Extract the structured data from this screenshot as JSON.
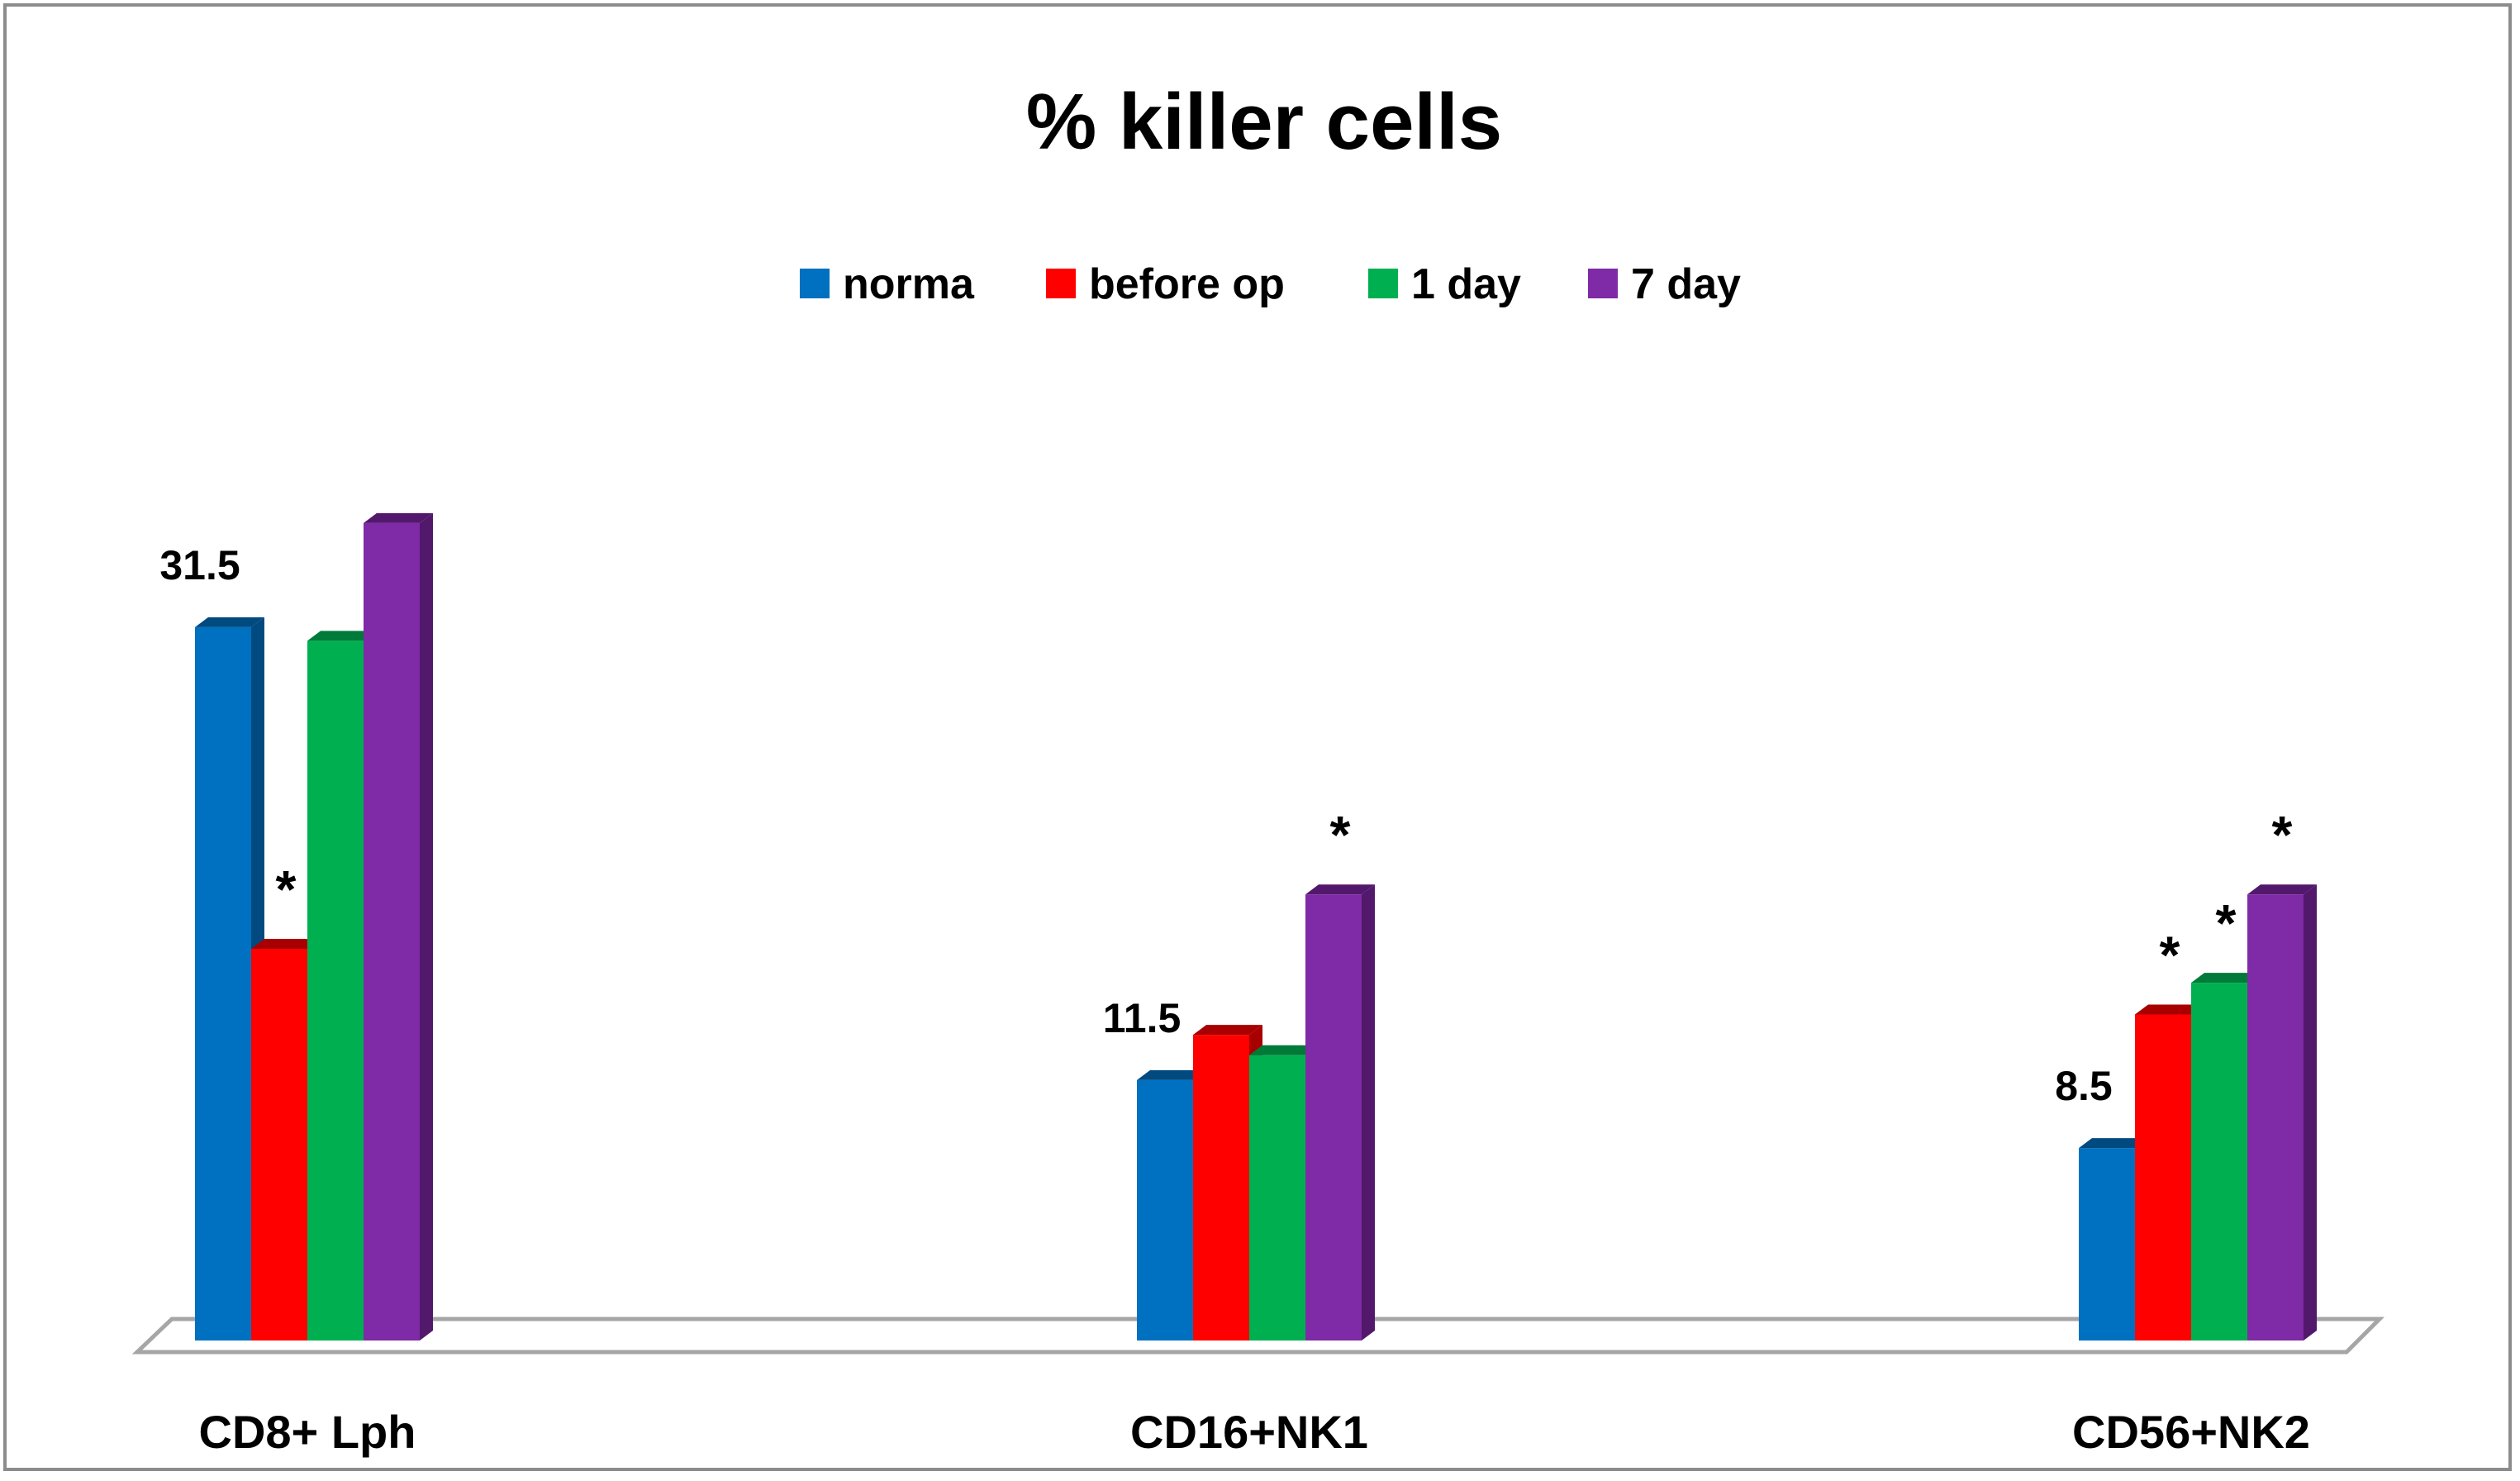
{
  "chart_data": {
    "type": "bar",
    "title": "% killer cells",
    "categories": [
      "CD8+ Lph",
      "CD16+NK1",
      "CD56+NK2"
    ],
    "series": [
      {
        "name": "norma",
        "color": "#0070c0",
        "side_color": "#004a80",
        "values": [
          31.5,
          11.5,
          8.5
        ]
      },
      {
        "name": "before op",
        "color": "#ff0000",
        "side_color": "#a80000",
        "values": [
          17.3,
          13.5,
          14.4
        ]
      },
      {
        "name": "1 day",
        "color": "#00b050",
        "side_color": "#007a38",
        "values": [
          30.9,
          12.6,
          15.8
        ]
      },
      {
        "name": "7 day",
        "color": "#7f2aa6",
        "side_color": "#52186c",
        "values": [
          36.1,
          19.7,
          19.7
        ]
      }
    ],
    "value_labels": [
      {
        "category": 0,
        "series": 0,
        "text": "31.5"
      },
      {
        "category": 1,
        "series": 0,
        "text": "11.5"
      },
      {
        "category": 2,
        "series": 0,
        "text": "8.5"
      }
    ],
    "significance_marks": [
      {
        "category": 0,
        "series": 1,
        "text": "*"
      },
      {
        "category": 1,
        "series": 3,
        "text": "*"
      },
      {
        "category": 2,
        "series": 1,
        "text": "*"
      },
      {
        "category": 2,
        "series": 2,
        "text": "*"
      },
      {
        "category": 2,
        "series": 3,
        "text": "*"
      }
    ],
    "legend_position": "top",
    "ylim": [
      0,
      40
    ],
    "grid": false,
    "xlabel": "",
    "ylabel": ""
  }
}
